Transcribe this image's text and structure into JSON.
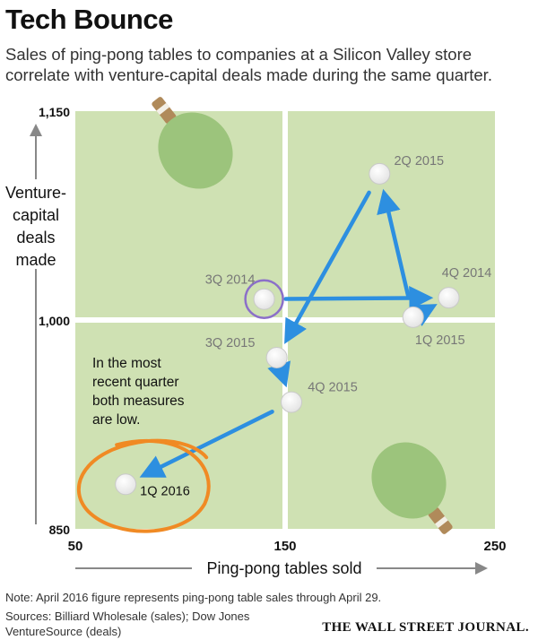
{
  "title": "Tech Bounce",
  "subtitle": "Sales of ping-pong tables to companies at a Silicon Valley store correlate with venture-capital deals made during the same quarter.",
  "chart_data": {
    "type": "scatter",
    "xlabel": "Ping-pong tables sold",
    "ylabel_lines": [
      "Venture-",
      "capital",
      "deals",
      "made"
    ],
    "xlim": [
      50,
      250
    ],
    "ylim": [
      850,
      1150
    ],
    "xticks": [
      {
        "value": 50,
        "label": "50"
      },
      {
        "value": 150,
        "label": "150"
      },
      {
        "value": 250,
        "label": "250"
      }
    ],
    "yticks": [
      {
        "value": 850,
        "label": "850"
      },
      {
        "value": 1000,
        "label": "1,000"
      },
      {
        "value": 1150,
        "label": "1,150"
      }
    ],
    "points": [
      {
        "label": "3Q 2014",
        "x": 140,
        "y": 1015
      },
      {
        "label": "4Q 2014",
        "x": 228,
        "y": 1016
      },
      {
        "label": "1Q 2015",
        "x": 211,
        "y": 1002
      },
      {
        "label": "2Q 2015",
        "x": 195,
        "y": 1105
      },
      {
        "label": "3Q 2015",
        "x": 146,
        "y": 973
      },
      {
        "label": "4Q 2015",
        "x": 153,
        "y": 941
      },
      {
        "label": "1Q 2016",
        "x": 74,
        "y": 882
      }
    ],
    "annotation": [
      "In the most",
      "recent quarter",
      "both measures",
      "are low."
    ],
    "colors": {
      "quadrant": "#cfe1b3",
      "arrow": "#2d8fe0",
      "highlight_circle": "#8b6fc9",
      "scribble": "#f08a24",
      "point": "#ffffff",
      "paddle": "#9cc47c"
    }
  },
  "note": "Note: April 2016 figure represents ping-pong table sales through April 29.",
  "sources": "Sources: Billiard Wholesale (sales); Dow Jones",
  "sources2": "VentureSource (deals)",
  "credit": "THE WALL STREET JOURNAL."
}
